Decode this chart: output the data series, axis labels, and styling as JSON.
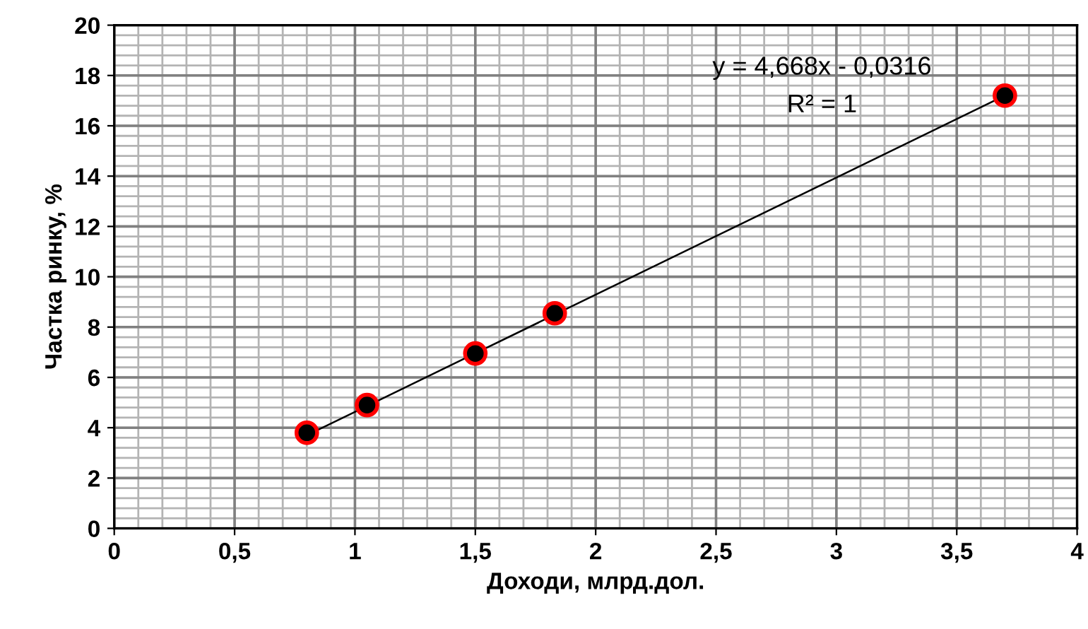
{
  "chart_data": {
    "type": "scatter",
    "xlabel": "Доходи, млрд.дол.",
    "ylabel": "Частка ринку, %",
    "series": [
      {
        "color": "#000000",
        "marker": "circle",
        "x": [
          0.8,
          1.05,
          1.5,
          1.83,
          3.7
        ],
        "values": [
          3.8,
          4.9,
          6.95,
          8.55,
          17.2
        ]
      },
      {
        "type": "line",
        "color": "#000000",
        "marker": "none",
        "x": [
          0.8,
          3.7
        ],
        "values": [
          3.7,
          17.2
        ]
      }
    ],
    "annotations": [
      "y = 4,668x - 0,0316",
      "R² = 1"
    ],
    "xlim": [
      0,
      4
    ],
    "ylim": [
      0,
      20
    ],
    "xticks": [
      0,
      {
        "value": 0.5,
        "label": "0,5"
      },
      1,
      {
        "value": 1.5,
        "label": "1,5"
      },
      2,
      {
        "value": 2.5,
        "label": "2,5"
      },
      3,
      {
        "value": 3.5,
        "label": "3,5"
      },
      4
    ],
    "yticks": [
      0,
      2,
      4,
      6,
      8,
      10,
      12,
      14,
      16,
      18,
      20
    ],
    "grid": true
  }
}
